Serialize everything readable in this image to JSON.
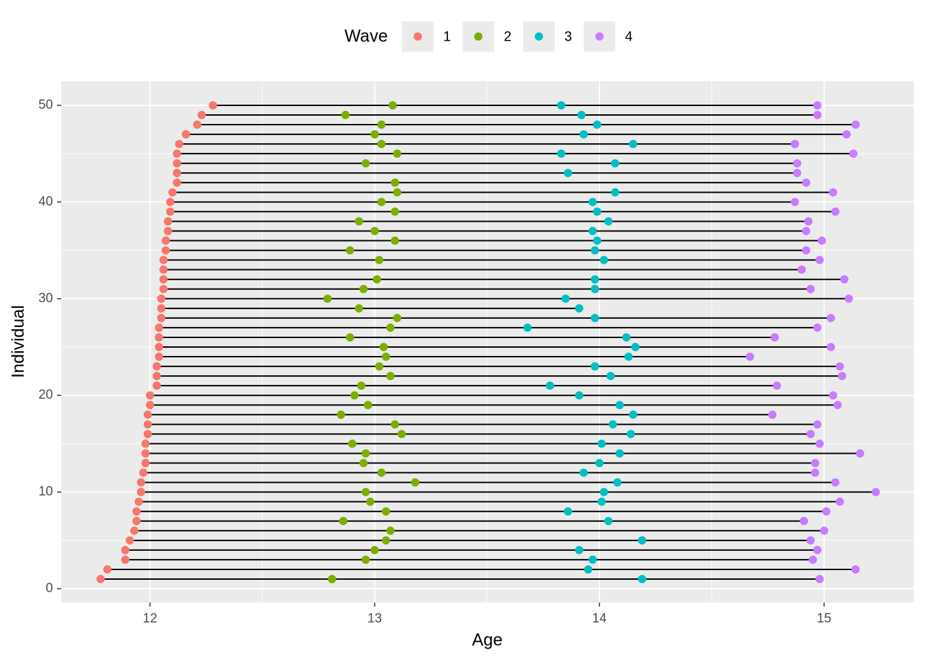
{
  "chart_data": {
    "type": "dumbbell",
    "x_label": "Age",
    "y_label": "Individual",
    "legend_title": "Wave",
    "xlim": [
      11.605,
      15.4
    ],
    "ylim": [
      -1.42,
      52.49
    ],
    "xticks": [
      12,
      13,
      14,
      15
    ],
    "yticks": [
      0,
      10,
      20,
      30,
      40,
      50
    ],
    "xminor_ticks": [
      12.5,
      13.5,
      14.5
    ],
    "yminor_ticks": [
      5,
      15,
      25,
      35,
      45
    ],
    "grid": true,
    "legend_position": "top",
    "segment_color": "#000000",
    "y": [
      1,
      2,
      3,
      4,
      5,
      6,
      7,
      8,
      9,
      10,
      11,
      12,
      13,
      14,
      15,
      16,
      17,
      18,
      19,
      20,
      21,
      22,
      23,
      24,
      25,
      26,
      27,
      28,
      29,
      30,
      31,
      32,
      33,
      34,
      35,
      36,
      37,
      38,
      39,
      40,
      41,
      42,
      43,
      44,
      45,
      46,
      47,
      48,
      49,
      50
    ],
    "series": [
      {
        "name": "1",
        "color": "#f8766d",
        "x": [
          11.78,
          11.81,
          11.89,
          11.89,
          11.91,
          11.93,
          11.94,
          11.94,
          11.95,
          11.96,
          11.96,
          11.97,
          11.98,
          11.98,
          11.98,
          11.99,
          11.99,
          11.99,
          12.0,
          12.0,
          12.03,
          12.03,
          12.03,
          12.04,
          12.04,
          12.04,
          12.04,
          12.05,
          12.05,
          12.05,
          12.06,
          12.06,
          12.06,
          12.06,
          12.07,
          12.07,
          12.08,
          12.08,
          12.09,
          12.09,
          12.1,
          12.12,
          12.12,
          12.12,
          12.12,
          12.13,
          12.16,
          12.21,
          12.23,
          12.28
        ]
      },
      {
        "name": "2",
        "color": "#7cae00",
        "x": [
          12.81,
          null,
          12.96,
          13.0,
          13.05,
          13.07,
          12.86,
          13.05,
          12.98,
          12.96,
          13.18,
          13.03,
          12.95,
          12.96,
          12.9,
          13.12,
          13.09,
          12.85,
          12.97,
          12.91,
          12.94,
          13.07,
          13.02,
          13.05,
          13.04,
          12.89,
          13.07,
          13.1,
          12.93,
          12.79,
          12.95,
          13.01,
          null,
          13.02,
          12.89,
          13.09,
          13.0,
          12.93,
          13.09,
          13.03,
          13.1,
          13.09,
          null,
          12.96,
          13.1,
          13.03,
          13.0,
          13.03,
          12.87,
          13.08
        ]
      },
      {
        "name": "3",
        "color": "#00bfc4",
        "x": [
          14.19,
          13.95,
          13.97,
          13.91,
          14.19,
          null,
          14.04,
          13.86,
          14.01,
          14.02,
          14.08,
          13.93,
          14.0,
          14.09,
          14.01,
          14.14,
          14.06,
          14.15,
          14.09,
          13.91,
          13.78,
          14.05,
          13.98,
          14.13,
          14.16,
          14.12,
          13.68,
          13.98,
          13.91,
          13.85,
          13.98,
          13.98,
          null,
          14.02,
          13.98,
          13.99,
          13.97,
          14.04,
          13.99,
          13.97,
          14.07,
          null,
          13.86,
          14.07,
          13.83,
          14.15,
          13.93,
          13.99,
          13.92,
          13.83
        ]
      },
      {
        "name": "4",
        "color": "#c77cff",
        "x": [
          14.98,
          15.14,
          14.95,
          14.97,
          14.94,
          15.0,
          14.91,
          15.01,
          15.07,
          15.23,
          15.05,
          14.96,
          14.96,
          15.16,
          14.98,
          14.94,
          14.97,
          14.77,
          15.06,
          15.04,
          14.79,
          15.08,
          15.07,
          14.67,
          15.03,
          14.78,
          14.97,
          15.03,
          null,
          15.11,
          14.94,
          15.09,
          14.9,
          14.98,
          14.92,
          14.99,
          14.92,
          14.93,
          15.05,
          14.87,
          15.04,
          14.92,
          14.88,
          14.88,
          15.13,
          14.87,
          15.1,
          15.14,
          14.97,
          14.97
        ]
      }
    ]
  }
}
